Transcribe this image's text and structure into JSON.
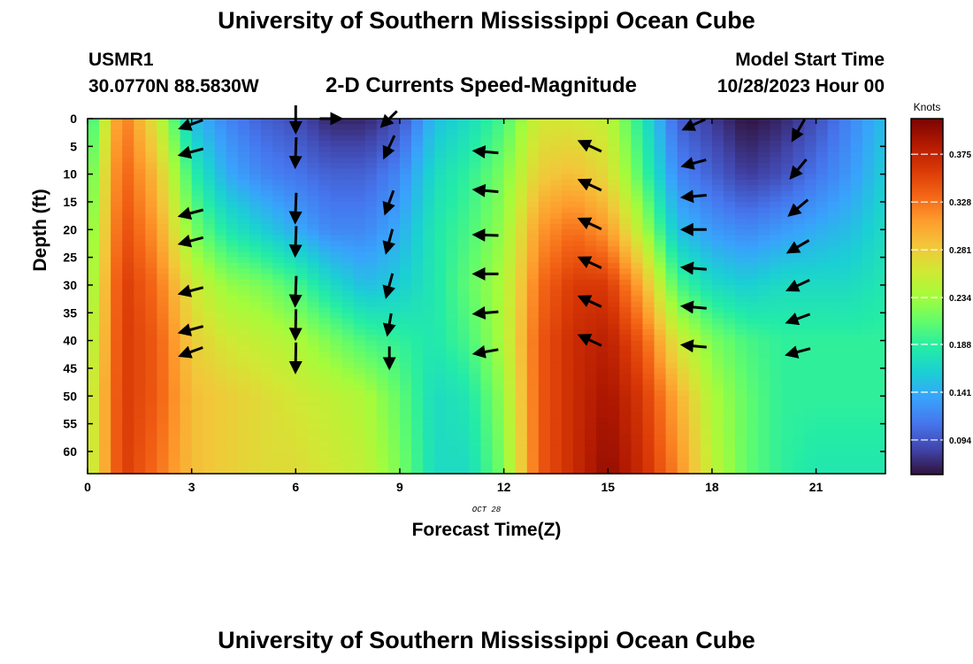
{
  "header": {
    "title": "University of Southern Mississippi Ocean Cube",
    "station_id": "USMR1",
    "station_coords": "30.0770N  88.5830W",
    "model_label": "Model Start Time",
    "model_date": "10/28/2023 Hour 00"
  },
  "footer": {
    "title": "University of Southern Mississippi Ocean Cube"
  },
  "chart_data": {
    "type": "heatmap",
    "title": "2-D Currents Speed-Magnitude",
    "xlabel": "Forecast Time(Z)",
    "ylabel": "Depth (ft)",
    "x_sublabel": "OCT 28",
    "xlim": [
      0,
      23
    ],
    "ylim": [
      0,
      64
    ],
    "x_ticks": [
      0,
      3,
      6,
      9,
      12,
      15,
      18,
      21
    ],
    "y_ticks": [
      0,
      5,
      10,
      15,
      20,
      25,
      30,
      35,
      40,
      45,
      50,
      55,
      60
    ],
    "colorbar": {
      "label": "Knots",
      "min": 0.06,
      "max": 0.41,
      "ticks": [
        "0.094",
        "0.141",
        "0.188",
        "0.234",
        "0.281",
        "0.328",
        "0.375"
      ],
      "colors": [
        "#30123b",
        "#4145ab",
        "#4675ed",
        "#39a2fc",
        "#1bcfd4",
        "#24eca6",
        "#61fc6c",
        "#a4fc3b",
        "#d1e834",
        "#f3c63a",
        "#fe9b2d",
        "#f36315",
        "#d93806",
        "#b11901",
        "#7a0403"
      ]
    },
    "speed_knots": {
      "hours": [
        0,
        1,
        2,
        3,
        4,
        5,
        6,
        7,
        8,
        9,
        10,
        11,
        12,
        13,
        14,
        15,
        16,
        17,
        18,
        19,
        20,
        21,
        22,
        23
      ],
      "depth_ft": [
        0,
        10,
        20,
        30,
        40,
        50,
        64
      ],
      "values": [
        [
          0.18,
          0.33,
          0.26,
          0.15,
          0.12,
          0.1,
          0.09,
          0.07,
          0.07,
          0.09,
          0.15,
          0.17,
          0.2,
          0.26,
          0.26,
          0.25,
          0.18,
          0.1,
          0.08,
          0.06,
          0.07,
          0.09,
          0.12,
          0.15
        ],
        [
          0.2,
          0.34,
          0.29,
          0.19,
          0.14,
          0.12,
          0.11,
          0.1,
          0.1,
          0.12,
          0.17,
          0.19,
          0.22,
          0.28,
          0.29,
          0.27,
          0.2,
          0.12,
          0.1,
          0.08,
          0.09,
          0.11,
          0.13,
          0.16
        ],
        [
          0.21,
          0.35,
          0.31,
          0.22,
          0.18,
          0.16,
          0.14,
          0.12,
          0.12,
          0.14,
          0.18,
          0.2,
          0.23,
          0.31,
          0.33,
          0.31,
          0.24,
          0.15,
          0.13,
          0.12,
          0.13,
          0.14,
          0.15,
          0.17
        ],
        [
          0.22,
          0.36,
          0.33,
          0.26,
          0.23,
          0.22,
          0.2,
          0.17,
          0.15,
          0.16,
          0.18,
          0.21,
          0.24,
          0.33,
          0.36,
          0.36,
          0.3,
          0.2,
          0.17,
          0.16,
          0.17,
          0.17,
          0.17,
          0.18
        ],
        [
          0.23,
          0.36,
          0.34,
          0.28,
          0.26,
          0.25,
          0.24,
          0.22,
          0.2,
          0.19,
          0.18,
          0.2,
          0.24,
          0.34,
          0.37,
          0.38,
          0.34,
          0.26,
          0.22,
          0.2,
          0.19,
          0.19,
          0.19,
          0.19
        ],
        [
          0.24,
          0.36,
          0.34,
          0.29,
          0.28,
          0.27,
          0.26,
          0.25,
          0.24,
          0.21,
          0.17,
          0.18,
          0.23,
          0.34,
          0.37,
          0.39,
          0.36,
          0.3,
          0.24,
          0.21,
          0.19,
          0.19,
          0.19,
          0.19
        ],
        [
          0.24,
          0.36,
          0.33,
          0.29,
          0.28,
          0.27,
          0.27,
          0.26,
          0.25,
          0.22,
          0.17,
          0.17,
          0.22,
          0.34,
          0.37,
          0.4,
          0.37,
          0.32,
          0.25,
          0.21,
          0.19,
          0.18,
          0.18,
          0.18
        ]
      ]
    },
    "current_vectors": {
      "description_units": "direction in degrees the arrow points (0 = up/north, 90 = right/east), length relative",
      "columns": [
        {
          "hour": 3,
          "depths": [
            1,
            6,
            17,
            22,
            31,
            38,
            42
          ],
          "direction_deg": [
            250,
            255,
            255,
            255,
            255,
            255,
            250
          ],
          "length": [
            0.9,
            0.9,
            0.9,
            0.9,
            0.9,
            0.9,
            0.9
          ]
        },
        {
          "hour": 6,
          "depths": [
            0,
            6,
            16,
            22,
            31,
            37,
            43
          ],
          "direction_deg": [
            180,
            182,
            182,
            182,
            182,
            181,
            181
          ],
          "length": [
            1.0,
            1.1,
            1.1,
            1.1,
            1.1,
            1.1,
            1.1
          ]
        },
        {
          "hour": 7,
          "depths": [
            0
          ],
          "direction_deg": [
            90
          ],
          "length": [
            0.8
          ]
        },
        {
          "hour": 8.7,
          "depths": [
            0,
            5,
            15,
            22,
            30,
            37,
            43
          ],
          "direction_deg": [
            225,
            205,
            200,
            195,
            195,
            190,
            180
          ],
          "length": [
            0.8,
            0.9,
            0.9,
            0.9,
            0.9,
            0.8,
            0.8
          ]
        },
        {
          "hour": 11.5,
          "depths": [
            6,
            13,
            21,
            28,
            35,
            42
          ],
          "direction_deg": [
            275,
            275,
            272,
            270,
            265,
            260
          ],
          "length": [
            0.9,
            0.9,
            0.9,
            0.9,
            0.9,
            0.9
          ]
        },
        {
          "hour": 14.5,
          "depths": [
            5,
            12,
            19,
            26,
            33,
            40
          ],
          "direction_deg": [
            295,
            295,
            295,
            295,
            295,
            295
          ],
          "length": [
            0.9,
            0.9,
            0.9,
            0.9,
            0.9,
            0.9
          ]
        },
        {
          "hour": 17.5,
          "depths": [
            1,
            8,
            14,
            20,
            27,
            34,
            41
          ],
          "direction_deg": [
            245,
            255,
            265,
            270,
            275,
            275,
            275
          ],
          "length": [
            0.9,
            0.9,
            0.9,
            0.9,
            0.9,
            0.9,
            0.9
          ]
        },
        {
          "hour": 20.5,
          "depths": [
            2,
            9,
            16,
            23,
            30,
            36,
            42
          ],
          "direction_deg": [
            210,
            220,
            230,
            240,
            245,
            250,
            255
          ],
          "length": [
            0.9,
            0.9,
            0.9,
            0.9,
            0.9,
            0.9,
            0.9
          ]
        }
      ]
    }
  }
}
